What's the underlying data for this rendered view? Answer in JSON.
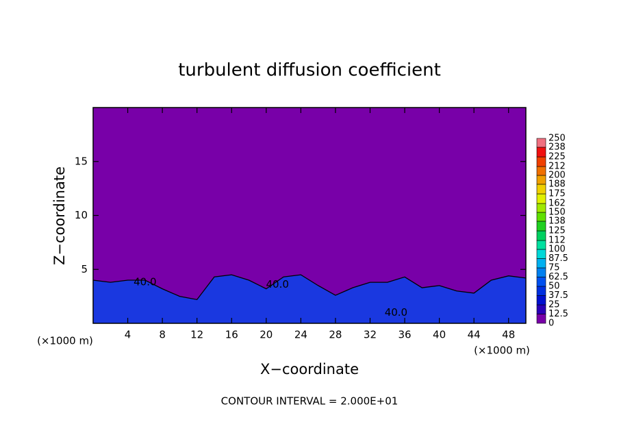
{
  "chart_data": {
    "type": "contour",
    "title": "turbulent diffusion coefficient",
    "x_label": "X−coordinate",
    "y_label": "Z−coordinate",
    "x_unit": "(×1000 m)",
    "footnote": "CONTOUR INTERVAL = 2.000E+01",
    "xlim": [
      0,
      50
    ],
    "xticks": [
      4,
      8,
      12,
      16,
      20,
      24,
      28,
      32,
      36,
      40,
      44,
      48
    ],
    "ylim": [
      0,
      20
    ],
    "yticks": [
      5,
      10,
      15
    ],
    "background_color": "#7800a8",
    "color": "#1a38e0",
    "x": [
      0,
      2,
      4,
      6,
      8,
      10,
      12,
      14,
      16,
      18,
      20,
      22,
      24,
      26,
      28,
      30,
      32,
      34,
      36,
      38,
      40,
      42,
      44,
      46,
      48,
      50
    ],
    "values": [
      4.0,
      3.8,
      4.0,
      4.0,
      3.2,
      2.5,
      2.2,
      4.3,
      4.5,
      4.0,
      3.2,
      4.3,
      4.5,
      3.5,
      2.6,
      3.3,
      3.8,
      3.8,
      4.3,
      3.3,
      3.5,
      3.0,
      2.8,
      4.0,
      4.4,
      4.2
    ],
    "annotations": [
      {
        "text": "40.0",
        "x": 6.0,
        "y": 3.8
      },
      {
        "text": "40.0",
        "x": 21.3,
        "y": 3.6
      },
      {
        "text": "40.0",
        "x": 35.0,
        "y": 1.0
      }
    ],
    "colorbar": {
      "levels": [
        0,
        12.5,
        25,
        37.5,
        50,
        62.5,
        75,
        87.5,
        100,
        112,
        125,
        138,
        150,
        162,
        175,
        188,
        200,
        212,
        225,
        238,
        250
      ],
      "colors": [
        "#7800a8",
        "#2a00b8",
        "#0010d0",
        "#0030e0",
        "#0050f0",
        "#0080f0",
        "#00b0f0",
        "#00d8d8",
        "#00e0a0",
        "#00d060",
        "#20d020",
        "#60e000",
        "#a0e800",
        "#e0f000",
        "#f0d000",
        "#f0a000",
        "#f07000",
        "#f04000",
        "#f01010",
        "#f07080"
      ]
    }
  }
}
